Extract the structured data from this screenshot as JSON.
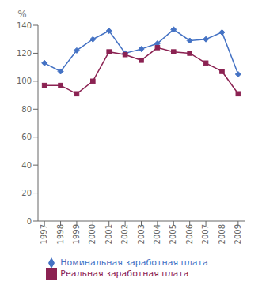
{
  "chart_data": {
    "type": "line",
    "x": [
      1997,
      1998,
      1999,
      2000,
      2001,
      2002,
      2003,
      2004,
      2005,
      2006,
      2007,
      2008,
      2009
    ],
    "xlim": [
      1996.6,
      2009.4
    ],
    "xticks": [
      1997,
      1998,
      1999,
      2000,
      2001,
      2002,
      2003,
      2004,
      2005,
      2006,
      2007,
      2008,
      2009
    ],
    "ylim": [
      0,
      140
    ],
    "yticks": [
      0,
      20,
      40,
      60,
      80,
      100,
      120,
      140
    ],
    "y_label": "%",
    "grid": false,
    "legend": "bottom",
    "series": [
      {
        "name": "Номинальная заработная плата",
        "color": "#4472C4",
        "marker": "diamond",
        "values": [
          113,
          107,
          122,
          130,
          136,
          120,
          123,
          127,
          137,
          129,
          130,
          135,
          105
        ]
      },
      {
        "name": "Реальная заработная плата",
        "color": "#8B2252",
        "marker": "square",
        "values": [
          97,
          97,
          91,
          100,
          121,
          119,
          115,
          124,
          121,
          120,
          113,
          107,
          91
        ]
      }
    ]
  }
}
